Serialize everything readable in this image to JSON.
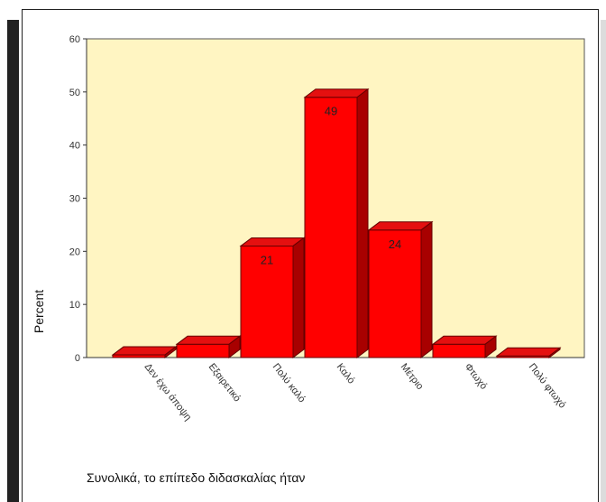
{
  "chart_data": {
    "type": "bar",
    "title": "",
    "xlabel": "Συνολικά, το επίπεδο διδασκαλίας ήταν",
    "ylabel": "Percent",
    "categories": [
      "Δεν έχω άποψη",
      "Εξαιρετικό",
      "Πολύ καλό",
      "Καλό",
      "Μέτριο",
      "Φτωχό",
      "Πολύ φτωχό"
    ],
    "values": [
      0.5,
      2.5,
      21,
      49,
      24,
      2.5,
      0.3
    ],
    "data_labels": [
      "",
      "",
      "21",
      "49",
      "24",
      "",
      ""
    ],
    "ylim": [
      0,
      60
    ],
    "yticks": [
      "0",
      "10",
      "20",
      "30",
      "40",
      "50",
      "60"
    ],
    "grid": false,
    "legend": "none",
    "colors": {
      "plot_background": "#FFF5C2",
      "bar_front": "#FF0000",
      "bar_top": "#E41010",
      "bar_side": "#A80000",
      "bar_outline": "#660000",
      "floor": "#C0BFA8"
    }
  }
}
